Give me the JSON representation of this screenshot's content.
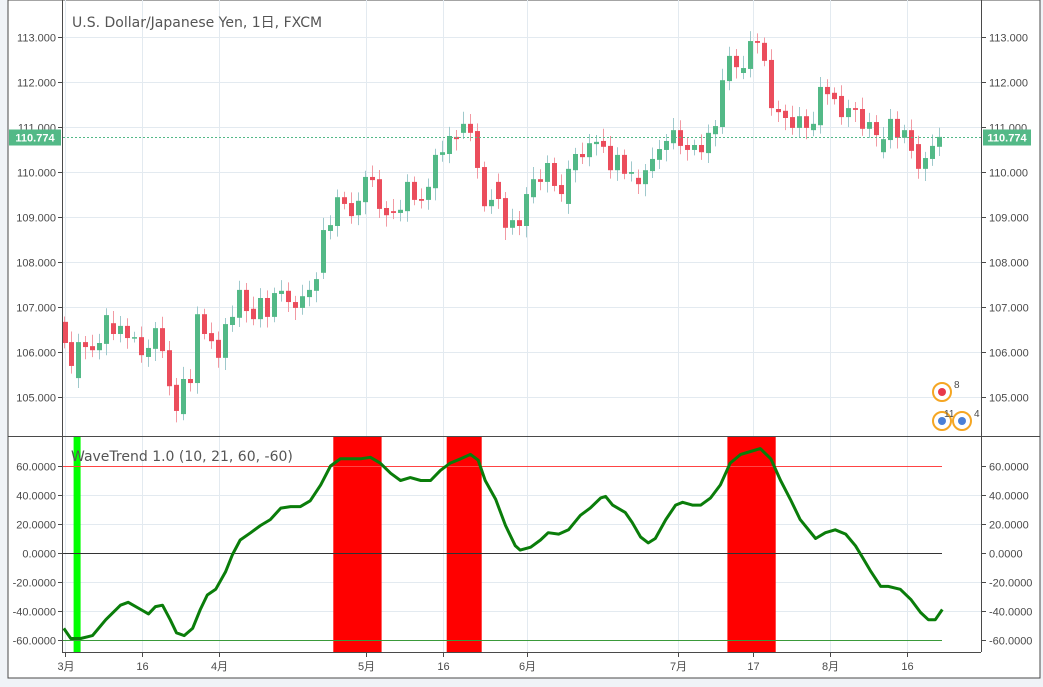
{
  "chart_data": [
    {
      "type": "candlestick",
      "title": "U.S. Dollar/Japanese Yen, 1日, FXCM",
      "ylim": [
        104.2,
        113.8
      ],
      "y_ticks": [
        "105.000",
        "106.000",
        "107.000",
        "108.000",
        "109.000",
        "110.000",
        "111.000",
        "112.000",
        "113.000"
      ],
      "y_tick_values": [
        105,
        106,
        107,
        108,
        109,
        110,
        111,
        112,
        113
      ],
      "last_price": 110.774,
      "last_price_label": "110.774",
      "grid": true,
      "colors": {
        "up": "#53b987",
        "down": "#eb4d5c",
        "up_wick": "#9fc9cc",
        "down_wick": "#f29aa3",
        "last_price": "#53b987"
      },
      "open": [
        106.67,
        106.22,
        105.42,
        106.22,
        106.13,
        106.04,
        106.18,
        106.64,
        106.4,
        106.58,
        106.33,
        106.33,
        105.89,
        106.07,
        106.53,
        106.04,
        105.27,
        104.62,
        105.4,
        105.31,
        106.84,
        106.42,
        106.27,
        105.87,
        106.6,
        106.76,
        107.38,
        106.96,
        106.73,
        107.2,
        106.78,
        107.29,
        107.36,
        107.11,
        106.98,
        107.22,
        107.36,
        107.76,
        108.69,
        108.8,
        109.44,
        109.31,
        109.04,
        109.33,
        109.89,
        109.84,
        109.2,
        109.13,
        109.09,
        109.13,
        109.78,
        109.4,
        109.38,
        109.64,
        110.38,
        110.4,
        110.78,
        110.87,
        111.07,
        110.91,
        110.11,
        109.24,
        109.78,
        109.42,
        108.76,
        108.93,
        108.8,
        109.44,
        109.84,
        109.78,
        110.2,
        109.71,
        109.29,
        110.04,
        110.4,
        110.33,
        110.62,
        110.69,
        110.58,
        110.04,
        110.38,
        109.96,
        109.87,
        109.73,
        110.02,
        110.27,
        110.49,
        110.64,
        110.93,
        110.6,
        110.49,
        110.6,
        110.42,
        110.84,
        111.0,
        112.02,
        112.58,
        112.2,
        112.29,
        112.91,
        112.87,
        112.49,
        111.4,
        111.36,
        111.22,
        110.98,
        111.24,
        110.93,
        111.04,
        111.89,
        111.76,
        111.69,
        111.22,
        111.42,
        111.4,
        110.96,
        111.11,
        110.44,
        110.71,
        111.18,
        110.76,
        110.93,
        110.62,
        110.07,
        110.29,
        110.56
      ],
      "close": [
        106.2,
        105.69,
        106.22,
        106.11,
        106.04,
        106.2,
        106.82,
        106.4,
        106.58,
        106.31,
        106.33,
        105.93,
        106.09,
        106.53,
        106.02,
        105.24,
        104.69,
        105.4,
        105.31,
        106.84,
        106.4,
        106.24,
        105.87,
        106.62,
        106.78,
        107.38,
        106.91,
        106.73,
        107.2,
        106.78,
        107.31,
        107.36,
        107.11,
        106.98,
        107.24,
        107.38,
        107.62,
        108.71,
        108.82,
        109.44,
        109.29,
        109.02,
        109.36,
        109.89,
        109.82,
        109.18,
        109.04,
        109.09,
        109.16,
        109.78,
        109.38,
        109.36,
        109.67,
        110.38,
        110.44,
        110.8,
        110.73,
        111.07,
        110.87,
        110.09,
        109.24,
        109.38,
        109.4,
        108.76,
        108.93,
        108.8,
        109.51,
        109.84,
        109.78,
        110.2,
        109.69,
        109.51,
        110.07,
        110.4,
        110.33,
        110.64,
        110.67,
        110.56,
        110.04,
        110.38,
        109.96,
        110.0,
        109.73,
        110.04,
        110.29,
        110.51,
        110.69,
        110.93,
        110.58,
        110.49,
        110.6,
        110.44,
        110.87,
        111.02,
        112.04,
        112.58,
        112.33,
        112.31,
        112.91,
        112.87,
        112.47,
        111.42,
        111.33,
        111.2,
        110.98,
        111.24,
        110.98,
        111.07,
        111.89,
        111.73,
        111.62,
        111.22,
        111.42,
        111.38,
        110.96,
        111.11,
        110.82,
        110.73,
        111.18,
        110.76,
        110.93,
        110.47,
        110.07,
        110.31,
        110.58,
        110.78
      ],
      "x_ticks": [
        {
          "bar": 0,
          "label": "3月"
        },
        {
          "bar": 11.1,
          "label": "16"
        },
        {
          "bar": 22,
          "label": "4月"
        },
        {
          "bar": 43,
          "label": "5月"
        },
        {
          "bar": 54.1,
          "label": "16"
        },
        {
          "bar": 66.1,
          "label": "6月"
        },
        {
          "bar": 87.6,
          "label": "7月"
        },
        {
          "bar": 98.4,
          "label": "17"
        },
        {
          "bar": 109.3,
          "label": "8月"
        },
        {
          "bar": 120.4,
          "label": "16"
        }
      ],
      "event_badges": [
        {
          "label": "8"
        },
        {
          "label": "11"
        },
        {
          "label": "4"
        }
      ]
    },
    {
      "type": "line",
      "title": "WaveTrend 1.0 (10, 21, 60, -60)",
      "ylim": [
        -70,
        80
      ],
      "y_ticks": [
        "60.0000",
        "40.0000",
        "20.0000",
        "0.0000",
        "-20.0000",
        "-40.0000",
        "-60.0000"
      ],
      "y_tick_values": [
        60,
        40,
        20,
        0,
        -20,
        -40,
        -60
      ],
      "levels": {
        "overbought": 60,
        "zero": 0,
        "oversold": -60
      },
      "colors": {
        "line": "#0a7d0a",
        "overbought": "#ff4444",
        "zero": "#333333",
        "oversold": "#3a9a3a",
        "ob_band": "#ff0000",
        "os_band": "#00ff00"
      },
      "points": [
        [
          -0.1,
          -52
        ],
        [
          0.9,
          -59
        ],
        [
          2.3,
          -59
        ],
        [
          4,
          -57
        ],
        [
          5.9,
          -46
        ],
        [
          8,
          -36
        ],
        [
          9.1,
          -34
        ],
        [
          10.9,
          -39
        ],
        [
          12,
          -42
        ],
        [
          13,
          -37
        ],
        [
          14,
          -36
        ],
        [
          15.1,
          -46
        ],
        [
          16,
          -55
        ],
        [
          17.1,
          -57
        ],
        [
          18.3,
          -52
        ],
        [
          19.4,
          -39
        ],
        [
          20.4,
          -29
        ],
        [
          21.6,
          -25
        ],
        [
          23,
          -13
        ],
        [
          24,
          -1
        ],
        [
          25.1,
          9
        ],
        [
          26.6,
          14
        ],
        [
          28,
          19
        ],
        [
          29.4,
          23
        ],
        [
          30.9,
          31
        ],
        [
          32.3,
          32
        ],
        [
          33.7,
          32
        ],
        [
          35.1,
          36
        ],
        [
          36.6,
          47
        ],
        [
          38,
          60
        ],
        [
          39.4,
          65
        ],
        [
          40.9,
          65
        ],
        [
          42.3,
          65
        ],
        [
          43.7,
          66
        ],
        [
          45.1,
          62
        ],
        [
          46.6,
          55
        ],
        [
          48,
          50
        ],
        [
          49.4,
          52
        ],
        [
          50.9,
          50
        ],
        [
          52.3,
          50
        ],
        [
          53.7,
          57
        ],
        [
          55.1,
          62
        ],
        [
          56.6,
          65
        ],
        [
          58,
          68
        ],
        [
          59.1,
          64
        ],
        [
          60.1,
          50
        ],
        [
          61.6,
          37
        ],
        [
          63,
          19
        ],
        [
          64.4,
          5
        ],
        [
          65.1,
          2
        ],
        [
          66.6,
          4
        ],
        [
          68,
          9
        ],
        [
          69.1,
          14
        ],
        [
          70.6,
          13
        ],
        [
          72,
          16
        ],
        [
          73.7,
          26
        ],
        [
          75.1,
          31
        ],
        [
          76.6,
          38
        ],
        [
          77.3,
          39
        ],
        [
          78.3,
          33
        ],
        [
          80.1,
          28
        ],
        [
          81.1,
          21
        ],
        [
          82.3,
          11
        ],
        [
          83.4,
          7
        ],
        [
          84.4,
          10
        ],
        [
          85.9,
          23
        ],
        [
          87.3,
          33
        ],
        [
          88.3,
          35
        ],
        [
          89.7,
          33
        ],
        [
          90.9,
          33
        ],
        [
          92.3,
          38
        ],
        [
          93.7,
          47
        ],
        [
          95.1,
          62
        ],
        [
          96.6,
          68
        ],
        [
          98,
          70
        ],
        [
          99.4,
          72
        ],
        [
          100.9,
          65
        ],
        [
          102.3,
          50
        ],
        [
          103.7,
          37
        ],
        [
          105.1,
          23
        ],
        [
          107.3,
          10
        ],
        [
          108.7,
          14
        ],
        [
          110.1,
          16
        ],
        [
          111.6,
          13
        ],
        [
          113,
          5
        ],
        [
          114,
          -3
        ],
        [
          115.1,
          -12
        ],
        [
          116.6,
          -23
        ],
        [
          117.7,
          -23
        ],
        [
          119.4,
          -25
        ],
        [
          120.9,
          -32
        ],
        [
          122.3,
          -41
        ],
        [
          123.4,
          -46
        ],
        [
          124.4,
          -46
        ],
        [
          125.4,
          -39
        ]
      ],
      "overbought_bands": [
        [
          38.4,
          45.3
        ],
        [
          54.6,
          59.6
        ],
        [
          94.7,
          101.6
        ]
      ],
      "oversold_bands": [
        [
          1.3,
          2.3
        ]
      ]
    }
  ]
}
